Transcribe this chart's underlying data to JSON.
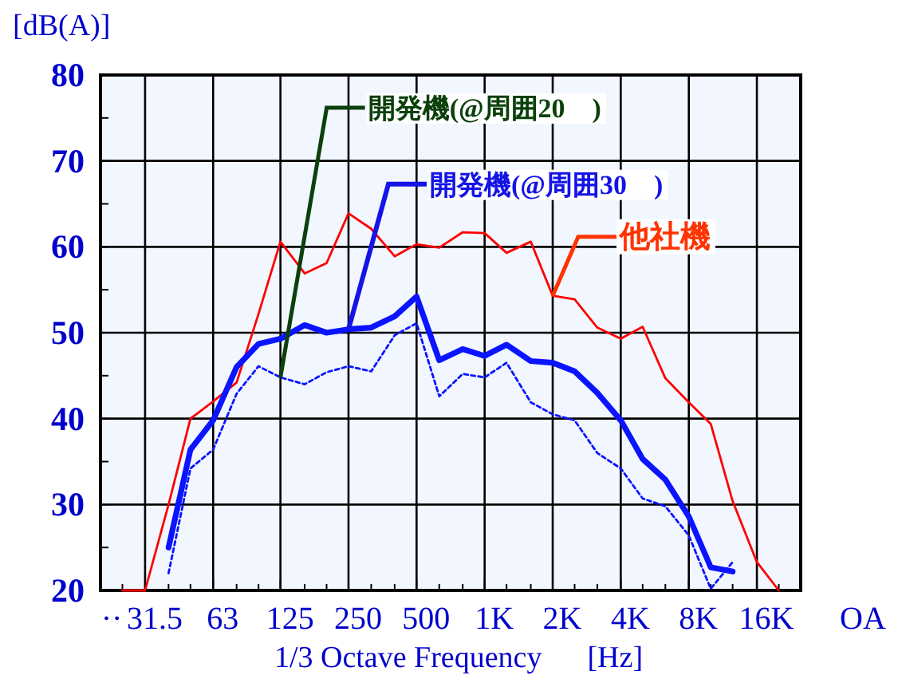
{
  "chart_data": {
    "type": "line",
    "ylabel": "[dB(A)]",
    "xlabel": "1/3 Octave Frequency      [Hz]",
    "log": "x",
    "x": [
      25,
      31.5,
      40,
      50,
      63,
      80,
      100,
      125,
      160,
      200,
      250,
      315,
      400,
      500,
      630,
      800,
      1000,
      1250,
      1600,
      2000,
      2500,
      3150,
      4000,
      5000,
      6300,
      8000,
      10000,
      12500,
      16000,
      20000
    ],
    "series": [
      {
        "color": "#ff0000",
        "values": [
          20,
          20,
          30,
          40,
          42,
          44.2,
          52.2,
          60.6,
          56.9,
          58.1,
          63.9,
          62.1,
          58.9,
          60.3,
          59.9,
          61.7,
          61.6,
          59.3,
          60.6,
          54.3,
          53.9,
          50.6,
          49.3,
          50.7,
          44.7,
          41.9,
          39.4,
          30.4,
          23.3,
          20
        ]
      },
      {
        "color": "#0a14ff",
        "values": [
          null,
          null,
          25,
          36.4,
          39.8,
          46,
          48.7,
          49.3,
          50.9,
          50,
          50.4,
          50.6,
          51.9,
          54.2,
          46.8,
          48.1,
          47.3,
          48.6,
          46.7,
          46.5,
          45.5,
          43,
          39.8,
          35.3,
          32.9,
          28.6,
          22.7,
          22.2,
          null,
          null
        ]
      },
      {
        "color": "#0a14ff",
        "line_style": "dotted",
        "values": [
          null,
          null,
          22,
          34.2,
          36.4,
          42.9,
          46.1,
          44.8,
          44,
          45.4,
          46.1,
          45.5,
          49.7,
          51.1,
          42.6,
          45.2,
          44.8,
          46.5,
          41.9,
          40.5,
          39.8,
          36,
          34.2,
          30.7,
          29.8,
          26.4,
          20.2,
          23.3,
          null,
          null
        ]
      }
    ],
    "xlim": [
      20,
      25000
    ],
    "xticks": [
      {
        "value": 25,
        "label": null
      },
      {
        "value": 31.5,
        "label": "31.5"
      },
      {
        "value": 40,
        "label": null
      },
      {
        "value": 50,
        "label": null
      },
      {
        "value": 63,
        "label": "63"
      },
      {
        "value": 80,
        "label": null
      },
      {
        "value": 100,
        "label": null
      },
      {
        "value": 125,
        "label": "125"
      },
      {
        "value": 160,
        "label": null
      },
      {
        "value": 200,
        "label": null
      },
      {
        "value": 250,
        "label": "250"
      },
      {
        "value": 315,
        "label": null
      },
      {
        "value": 400,
        "label": null
      },
      {
        "value": 500,
        "label": "500"
      },
      {
        "value": 630,
        "label": null
      },
      {
        "value": 800,
        "label": null
      },
      {
        "value": 1000,
        "label": "1K"
      },
      {
        "value": 1250,
        "label": null
      },
      {
        "value": 1600,
        "label": null
      },
      {
        "value": 2000,
        "label": "2K"
      },
      {
        "value": 2500,
        "label": null
      },
      {
        "value": 3150,
        "label": null
      },
      {
        "value": 4000,
        "label": "4K"
      },
      {
        "value": 5000,
        "label": null
      },
      {
        "value": 6300,
        "label": null
      },
      {
        "value": 8000,
        "label": "8K"
      },
      {
        "value": 10000,
        "label": null
      },
      {
        "value": 12500,
        "label": null
      },
      {
        "value": 16000,
        "label": "16K"
      },
      {
        "value": 20000,
        "label": null
      }
    ],
    "ylim": [
      20,
      80
    ],
    "yticks": [
      20,
      {
        "value": 25,
        "label": null
      },
      30,
      {
        "value": 35,
        "label": null
      },
      40,
      {
        "value": 45,
        "label": null
      },
      50,
      {
        "value": 55,
        "label": null
      },
      60,
      {
        "value": 65,
        "label": null
      },
      70,
      {
        "value": 75,
        "label": null
      },
      80
    ],
    "grid": true,
    "annotations": [
      {
        "text": "開発機(@周囲20　)",
        "x": 125,
        "y": 44.8
      },
      {
        "text": "開発機(@周囲30　)",
        "x": 250,
        "y": 50.4
      },
      {
        "text": "他社機",
        "x": 2000,
        "y": 54.3
      },
      "··",
      "OA"
    ]
  }
}
